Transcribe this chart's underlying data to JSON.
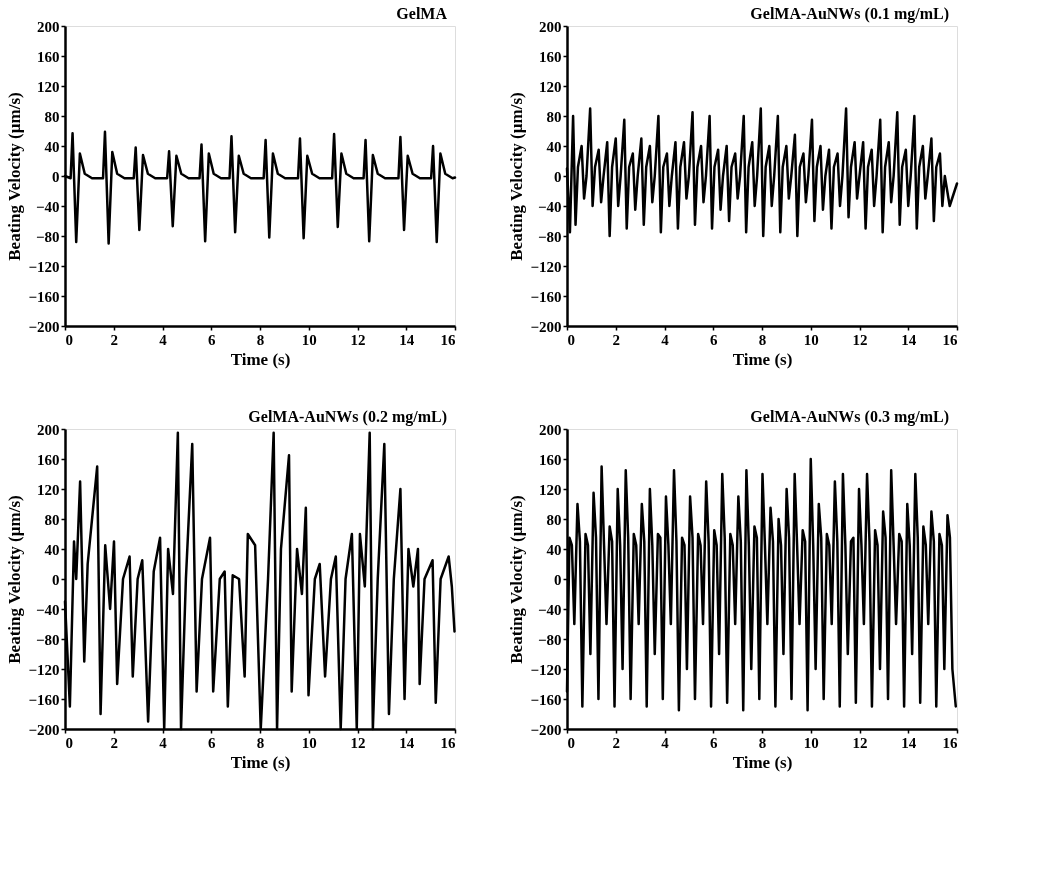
{
  "chart_data": [
    {
      "type": "line",
      "title": "GelMA",
      "xlabel": "Time (s)",
      "ylabel": "Beating Velocity (µm/s)",
      "xlim": [
        0,
        16
      ],
      "ylim": [
        -200,
        200
      ],
      "xticks": [
        0,
        2,
        4,
        6,
        8,
        10,
        12,
        14,
        16
      ],
      "yticks": [
        -200,
        -160,
        -120,
        -80,
        -40,
        0,
        40,
        80,
        120,
        160,
        200
      ],
      "series": [
        {
          "color": "#000000",
          "x": [
            0,
            0.23,
            0.31,
            0.46,
            0.61,
            0.81,
            1.11,
            1.56,
            1.64,
            1.79,
            1.94,
            2.14,
            2.44,
            2.82,
            2.9,
            3.05,
            3.2,
            3.4,
            3.7,
            4.19,
            4.27,
            4.42,
            4.57,
            4.77,
            5.07,
            5.52,
            5.6,
            5.75,
            5.9,
            6.1,
            6.4,
            6.75,
            6.83,
            6.98,
            7.13,
            7.33,
            7.63,
            8.15,
            8.23,
            8.38,
            8.53,
            8.73,
            9.03,
            9.56,
            9.64,
            9.79,
            9.94,
            10.14,
            10.44,
            10.96,
            11.04,
            11.19,
            11.34,
            11.54,
            11.84,
            12.25,
            12.33,
            12.48,
            12.63,
            12.83,
            13.13,
            13.68,
            13.76,
            13.91,
            14.06,
            14.26,
            14.56,
            15.02,
            15.1,
            15.25,
            15.4,
            15.6,
            15.9,
            16
          ],
          "values": [
            0,
            -3,
            57,
            -88,
            30,
            3,
            -3,
            -3,
            59,
            -90,
            32,
            3,
            -3,
            -3,
            38,
            -72,
            28,
            3,
            -3,
            -3,
            33,
            -67,
            27,
            3,
            -3,
            -3,
            42,
            -87,
            30,
            3,
            -3,
            -3,
            53,
            -75,
            27,
            3,
            -3,
            -3,
            48,
            -82,
            30,
            3,
            -3,
            -3,
            50,
            -83,
            27,
            3,
            -3,
            -3,
            56,
            -68,
            30,
            3,
            -3,
            -3,
            48,
            -87,
            28,
            3,
            -3,
            -3,
            52,
            -72,
            27,
            3,
            -3,
            -3,
            40,
            -88,
            30,
            3,
            -3,
            -2
          ]
        }
      ]
    },
    {
      "type": "line",
      "title": "GelMA-AuNWs (0.1 mg/mL)",
      "xlabel": "Time (s)",
      "ylabel": "Beating Velocity (µm/s)",
      "xlim": [
        0,
        16
      ],
      "ylim": [
        -200,
        200
      ],
      "xticks": [
        0,
        2,
        4,
        6,
        8,
        10,
        12,
        14,
        16
      ],
      "yticks": [
        -200,
        -160,
        -120,
        -80,
        -40,
        0,
        40,
        80,
        120,
        160,
        200
      ],
      "series": [
        {
          "color": "#000000",
          "x": [
            0,
            0.12,
            0.25,
            0.35,
            0.45,
            0.6,
            0.7,
            0.8,
            0.95,
            1.05,
            1.15,
            1.3,
            1.4,
            1.5,
            1.65,
            1.75,
            1.85,
            2,
            2.1,
            2.2,
            2.35,
            2.45,
            2.55,
            2.7,
            2.8,
            2.9,
            3.05,
            3.15,
            3.25,
            3.4,
            3.5,
            3.6,
            3.75,
            3.85,
            3.95,
            4.1,
            4.2,
            4.3,
            4.45,
            4.55,
            4.65,
            4.8,
            4.9,
            5,
            5.15,
            5.25,
            5.35,
            5.5,
            5.6,
            5.7,
            5.85,
            5.95,
            6.05,
            6.2,
            6.3,
            6.4,
            6.55,
            6.65,
            6.75,
            6.9,
            7,
            7.1,
            7.25,
            7.35,
            7.45,
            7.6,
            7.7,
            7.8,
            7.95,
            8.05,
            8.15,
            8.3,
            8.4,
            8.5,
            8.65,
            8.75,
            8.85,
            9,
            9.1,
            9.2,
            9.35,
            9.45,
            9.55,
            9.7,
            9.8,
            9.9,
            10.05,
            10.15,
            10.25,
            10.4,
            10.5,
            10.6,
            10.75,
            10.85,
            10.95,
            11.1,
            11.2,
            11.3,
            11.45,
            11.55,
            11.65,
            11.8,
            11.9,
            12,
            12.15,
            12.25,
            12.35,
            12.5,
            12.6,
            12.7,
            12.85,
            12.95,
            13.05,
            13.2,
            13.3,
            13.4,
            13.55,
            13.65,
            13.75,
            13.9,
            14,
            14.1,
            14.25,
            14.35,
            14.45,
            14.6,
            14.7,
            14.8,
            14.95,
            15.05,
            15.15,
            15.3,
            15.4,
            15.5,
            15.7,
            16
          ],
          "values": [
            10,
            -75,
            80,
            -65,
            12,
            40,
            -30,
            0,
            90,
            -40,
            12,
            35,
            -35,
            0,
            45,
            -80,
            12,
            50,
            -40,
            0,
            75,
            -70,
            12,
            30,
            -45,
            0,
            50,
            -65,
            12,
            40,
            -35,
            0,
            80,
            -75,
            12,
            30,
            -40,
            0,
            45,
            -70,
            12,
            45,
            -30,
            0,
            85,
            -65,
            12,
            40,
            -35,
            0,
            80,
            -70,
            12,
            35,
            -45,
            0,
            40,
            -60,
            12,
            30,
            -30,
            0,
            80,
            -75,
            12,
            45,
            -40,
            0,
            90,
            -80,
            12,
            40,
            -40,
            0,
            80,
            -75,
            12,
            40,
            -30,
            0,
            55,
            -80,
            12,
            30,
            -35,
            0,
            75,
            -60,
            12,
            40,
            -45,
            0,
            35,
            -70,
            12,
            30,
            -40,
            0,
            90,
            -55,
            12,
            45,
            -30,
            0,
            45,
            -70,
            12,
            35,
            -40,
            0,
            75,
            -75,
            12,
            45,
            -35,
            0,
            85,
            -65,
            12,
            35,
            -40,
            0,
            80,
            -70,
            12,
            40,
            -30,
            0,
            50,
            -60,
            12,
            30,
            -40,
            0,
            -40,
            -10
          ]
        }
      ]
    },
    {
      "type": "line",
      "title": "GelMA-AuNWs (0.2 mg/mL)",
      "xlabel": "Time (s)",
      "ylabel": "Beating Velocity (µm/s)",
      "xlim": [
        0,
        16
      ],
      "ylim": [
        -200,
        200
      ],
      "xticks": [
        0,
        2,
        4,
        6,
        8,
        10,
        12,
        14,
        16
      ],
      "yticks": [
        -200,
        -160,
        -120,
        -80,
        -40,
        0,
        40,
        80,
        120,
        160,
        200
      ],
      "series": [
        {
          "color": "#000000",
          "x": [
            0,
            0.2,
            0.37,
            0.46,
            0.62,
            0.79,
            0.93,
            1.32,
            1.46,
            1.65,
            1.85,
            2.01,
            2.14,
            2.38,
            2.65,
            2.78,
            2.98,
            3.17,
            3.41,
            3.64,
            3.9,
            4.07,
            4.23,
            4.43,
            4.63,
            4.76,
            4.96,
            5.22,
            5.4,
            5.62,
            5.95,
            6.08,
            6.35,
            6.55,
            6.68,
            6.88,
            7.14,
            7.37,
            7.5,
            7.8,
            8.03,
            8.33,
            8.56,
            8.7,
            8.86,
            9.19,
            9.3,
            9.52,
            9.72,
            9.88,
            9.99,
            10.25,
            10.45,
            10.67,
            10.91,
            11.11,
            11.31,
            11.51,
            11.77,
            11.97,
            12.1,
            12.3,
            12.5,
            12.63,
            12.83,
            13.1,
            13.29,
            13.49,
            13.76,
            13.93,
            14.09,
            14.29,
            14.48,
            14.55,
            14.75,
            15.08,
            15.21,
            15.41,
            15.74,
            15.87,
            15.98
          ],
          "values": [
            -30,
            -170,
            50,
            0,
            130,
            -110,
            20,
            150,
            -180,
            45,
            -40,
            50,
            -140,
            0,
            30,
            -130,
            0,
            25,
            -190,
            10,
            55,
            -200,
            40,
            -20,
            195,
            -200,
            0,
            180,
            -150,
            0,
            55,
            -150,
            0,
            10,
            -170,
            5,
            0,
            -130,
            60,
            45,
            -200,
            0,
            195,
            -200,
            40,
            165,
            -150,
            40,
            -20,
            95,
            -155,
            0,
            20,
            -130,
            0,
            30,
            -200,
            0,
            60,
            -200,
            60,
            -10,
            195,
            -200,
            0,
            180,
            -180,
            0,
            120,
            -160,
            40,
            -10,
            40,
            -140,
            0,
            25,
            -165,
            0,
            30,
            -10,
            -70
          ]
        }
      ]
    },
    {
      "type": "line",
      "title": "GelMA-AuNWs (0.3 mg/mL)",
      "xlabel": "Time (s)",
      "ylabel": "Beating Velocity (µm/s)",
      "xlim": [
        0,
        16
      ],
      "ylim": [
        -200,
        200
      ],
      "xticks": [
        0,
        2,
        4,
        6,
        8,
        10,
        12,
        14,
        16
      ],
      "yticks": [
        -200,
        -160,
        -120,
        -80,
        -40,
        0,
        40,
        80,
        120,
        160,
        200
      ],
      "series": [
        {
          "color": "#000000",
          "x": [
            0,
            0.1,
            0.2,
            0.3,
            0.43,
            0.53,
            0.63,
            0.76,
            0.86,
            0.96,
            1.09,
            1.19,
            1.29,
            1.42,
            1.52,
            1.62,
            1.75,
            1.85,
            1.95,
            2.08,
            2.18,
            2.28,
            2.41,
            2.51,
            2.61,
            2.74,
            2.84,
            2.94,
            3.07,
            3.17,
            3.27,
            3.4,
            3.5,
            3.6,
            3.73,
            3.83,
            3.93,
            4.06,
            4.16,
            4.26,
            4.39,
            4.49,
            4.59,
            4.72,
            4.82,
            4.92,
            5.05,
            5.15,
            5.25,
            5.38,
            5.48,
            5.58,
            5.71,
            5.81,
            5.91,
            6.04,
            6.14,
            6.24,
            6.37,
            6.47,
            6.57,
            6.7,
            6.8,
            6.9,
            7.03,
            7.13,
            7.23,
            7.36,
            7.46,
            7.56,
            7.69,
            7.79,
            7.89,
            8.02,
            8.12,
            8.22,
            8.35,
            8.45,
            8.55,
            8.68,
            8.78,
            8.88,
            9.01,
            9.11,
            9.21,
            9.34,
            9.44,
            9.54,
            9.67,
            9.77,
            9.87,
            10,
            10.1,
            10.2,
            10.33,
            10.43,
            10.53,
            10.66,
            10.76,
            10.86,
            10.99,
            11.09,
            11.19,
            11.32,
            11.42,
            11.52,
            11.65,
            11.75,
            11.85,
            11.98,
            12.08,
            12.18,
            12.31,
            12.41,
            12.51,
            12.64,
            12.74,
            12.84,
            12.97,
            13.07,
            13.17,
            13.3,
            13.4,
            13.5,
            13.63,
            13.73,
            13.83,
            13.96,
            14.06,
            14.16,
            14.29,
            14.39,
            14.49,
            14.62,
            14.72,
            14.82,
            14.95,
            15.05,
            15.15,
            15.28,
            15.38,
            15.48,
            15.61,
            15.71,
            15.81,
            15.95
          ],
          "values": [
            -150,
            55,
            45,
            -60,
            100,
            50,
            -170,
            60,
            45,
            -100,
            115,
            55,
            -160,
            150,
            45,
            -60,
            70,
            50,
            -170,
            120,
            45,
            -120,
            145,
            55,
            -160,
            60,
            45,
            -60,
            100,
            50,
            -170,
            120,
            45,
            -100,
            60,
            55,
            -160,
            110,
            45,
            -60,
            145,
            50,
            -175,
            55,
            45,
            -120,
            110,
            55,
            -160,
            60,
            45,
            -60,
            130,
            50,
            -170,
            65,
            45,
            -100,
            140,
            55,
            -165,
            60,
            45,
            -60,
            110,
            50,
            -175,
            145,
            45,
            -120,
            70,
            55,
            -160,
            140,
            45,
            -60,
            95,
            50,
            -170,
            80,
            45,
            -100,
            120,
            55,
            -160,
            140,
            45,
            -60,
            65,
            50,
            -175,
            160,
            45,
            -120,
            100,
            55,
            -160,
            60,
            45,
            -60,
            130,
            50,
            -170,
            140,
            45,
            -100,
            50,
            55,
            -165,
            120,
            45,
            -60,
            140,
            50,
            -170,
            65,
            45,
            -120,
            90,
            55,
            -160,
            145,
            45,
            -60,
            60,
            50,
            -170,
            100,
            45,
            -100,
            140,
            55,
            -165,
            70,
            45,
            -60,
            90,
            50,
            -170,
            60,
            45,
            -120,
            85,
            55,
            -120,
            -170
          ]
        }
      ]
    }
  ]
}
